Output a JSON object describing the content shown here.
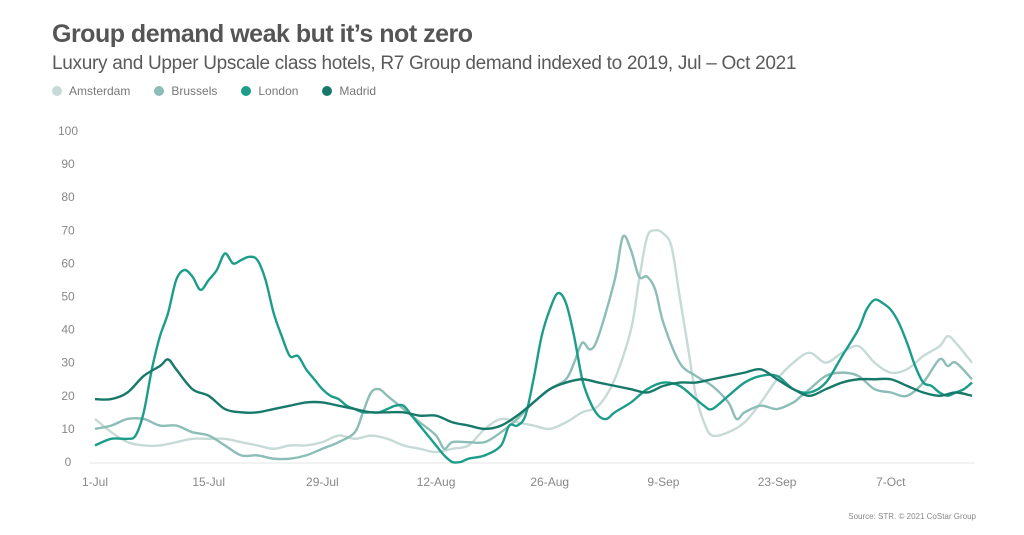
{
  "chart_data": {
    "type": "line",
    "title": "Group demand weak but it’s not zero",
    "subtitle": "Luxury and Upper Upscale class hotels, R7 Group demand indexed to 2019, Jul – Oct 2021",
    "xlabel": "",
    "ylabel": "",
    "ylim": [
      0,
      100
    ],
    "yticks": [
      "0",
      "10",
      "20",
      "30",
      "40",
      "50",
      "60",
      "70",
      "80",
      "90",
      "100"
    ],
    "x_unit": "days since 1-Jul-2021",
    "xlim": [
      0,
      108
    ],
    "xticks": [
      {
        "label": "1-Jul",
        "day": 0
      },
      {
        "label": "15-Jul",
        "day": 14
      },
      {
        "label": "29-Jul",
        "day": 28
      },
      {
        "label": "12-Aug",
        "day": 42
      },
      {
        "label": "26-Aug",
        "day": 56
      },
      {
        "label": "9-Sep",
        "day": 70
      },
      {
        "label": "23-Sep",
        "day": 84
      },
      {
        "label": "7-Oct",
        "day": 98
      }
    ],
    "grid": false,
    "legend_position": "top-left",
    "series": [
      {
        "name": "Amsterdam",
        "color": "#c6dbd7",
        "x": [
          0,
          2,
          4,
          6,
          8,
          10,
          12,
          14,
          16,
          18,
          20,
          22,
          24,
          26,
          28,
          30,
          32,
          34,
          36,
          38,
          40,
          42,
          44,
          46,
          48,
          50,
          52,
          54,
          56,
          58,
          60,
          62,
          64,
          66,
          67,
          68,
          69,
          70,
          71,
          72,
          73,
          74,
          75,
          76,
          78,
          80,
          82,
          84,
          86,
          88,
          90,
          92,
          94,
          96,
          98,
          100,
          102,
          104,
          105,
          106,
          108
        ],
        "y": [
          13,
          9,
          6,
          5,
          5,
          6,
          7,
          7,
          7,
          6,
          5,
          4,
          5,
          5,
          6,
          8,
          7,
          8,
          7,
          5,
          4,
          3,
          4,
          5,
          10,
          13,
          12,
          11,
          10,
          12,
          15,
          17,
          25,
          40,
          55,
          68,
          70,
          69,
          65,
          50,
          35,
          20,
          12,
          8,
          9,
          12,
          18,
          25,
          30,
          33,
          30,
          33,
          35,
          30,
          27,
          28,
          32,
          35,
          38,
          36,
          30
        ]
      },
      {
        "name": "Brussels",
        "color": "#8cbdb6",
        "x": [
          0,
          2,
          4,
          6,
          8,
          10,
          12,
          14,
          16,
          18,
          20,
          22,
          24,
          26,
          28,
          30,
          32,
          33,
          34,
          35,
          36,
          38,
          40,
          42,
          43,
          44,
          46,
          48,
          50,
          52,
          54,
          56,
          58,
          59,
          60,
          61,
          62,
          64,
          65,
          66,
          67,
          68,
          69,
          70,
          72,
          74,
          76,
          78,
          79,
          80,
          82,
          84,
          86,
          87,
          88,
          90,
          92,
          94,
          96,
          98,
          100,
          102,
          104,
          105,
          106,
          108
        ],
        "y": [
          10,
          11,
          13,
          13,
          11,
          11,
          9,
          8,
          5,
          2,
          2,
          1,
          1,
          2,
          4,
          6,
          9,
          15,
          21,
          22,
          20,
          16,
          12,
          8,
          4,
          6,
          6,
          6,
          9,
          13,
          18,
          22,
          25,
          30,
          36,
          34,
          38,
          55,
          68,
          64,
          56,
          56,
          52,
          42,
          30,
          26,
          23,
          18,
          13,
          15,
          17,
          16,
          18,
          20,
          22,
          26,
          27,
          26,
          22,
          21,
          20,
          24,
          31,
          29,
          30,
          25
        ]
      },
      {
        "name": "London",
        "color": "#1c9d8a",
        "x": [
          0,
          2,
          4,
          5,
          6,
          7,
          8,
          9,
          10,
          11,
          12,
          13,
          14,
          15,
          16,
          17,
          18,
          19,
          20,
          21,
          22,
          23,
          24,
          25,
          26,
          27,
          28,
          29,
          30,
          31,
          32,
          33,
          34,
          35,
          36,
          37,
          38,
          39,
          40,
          41,
          42,
          43,
          44,
          45,
          46,
          48,
          50,
          51,
          52,
          53,
          54,
          55,
          56,
          57,
          58,
          59,
          60,
          61,
          62,
          63,
          64,
          66,
          68,
          70,
          72,
          74,
          75,
          76,
          78,
          80,
          82,
          84,
          86,
          88,
          90,
          92,
          94,
          95,
          96,
          97,
          98,
          99,
          100,
          101,
          102,
          103,
          104,
          105,
          106,
          107,
          108
        ],
        "y": [
          5,
          7,
          7,
          8,
          15,
          28,
          38,
          45,
          55,
          58,
          56,
          52,
          55,
          58,
          63,
          60,
          61,
          62,
          61,
          55,
          45,
          38,
          32,
          32,
          28,
          25,
          22,
          20,
          19,
          17,
          16,
          15,
          15,
          15,
          16,
          17,
          17,
          14,
          11,
          8,
          5,
          2,
          0,
          0,
          1,
          2,
          5,
          11,
          11,
          14,
          25,
          38,
          46,
          51,
          48,
          38,
          25,
          18,
          14,
          13,
          15,
          18,
          22,
          24,
          23,
          19,
          17,
          16,
          20,
          24,
          26,
          26,
          22,
          21,
          24,
          32,
          40,
          46,
          49,
          48,
          46,
          42,
          36,
          29,
          24,
          23,
          21,
          20,
          21,
          22,
          24
        ]
      },
      {
        "name": "Madrid",
        "color": "#17796a",
        "x": [
          0,
          2,
          4,
          6,
          8,
          9,
          10,
          12,
          14,
          16,
          18,
          20,
          22,
          24,
          26,
          28,
          30,
          32,
          34,
          36,
          38,
          40,
          42,
          44,
          46,
          48,
          50,
          52,
          54,
          56,
          58,
          60,
          62,
          64,
          66,
          68,
          70,
          72,
          74,
          76,
          78,
          80,
          82,
          84,
          86,
          88,
          90,
          92,
          94,
          96,
          98,
          100,
          102,
          104,
          106,
          108
        ],
        "y": [
          19,
          19,
          21,
          26,
          29,
          31,
          28,
          22,
          20,
          16,
          15,
          15,
          16,
          17,
          18,
          18,
          17,
          16,
          15,
          15,
          15,
          14,
          14,
          12,
          11,
          10,
          11,
          14,
          18,
          22,
          24,
          25,
          24,
          23,
          22,
          21,
          23,
          24,
          24,
          25,
          26,
          27,
          28,
          25,
          22,
          20,
          22,
          24,
          25,
          25,
          25,
          23,
          21,
          20,
          21,
          20
        ]
      }
    ],
    "source": "Source: STR. © 2021 CoStar Group"
  }
}
